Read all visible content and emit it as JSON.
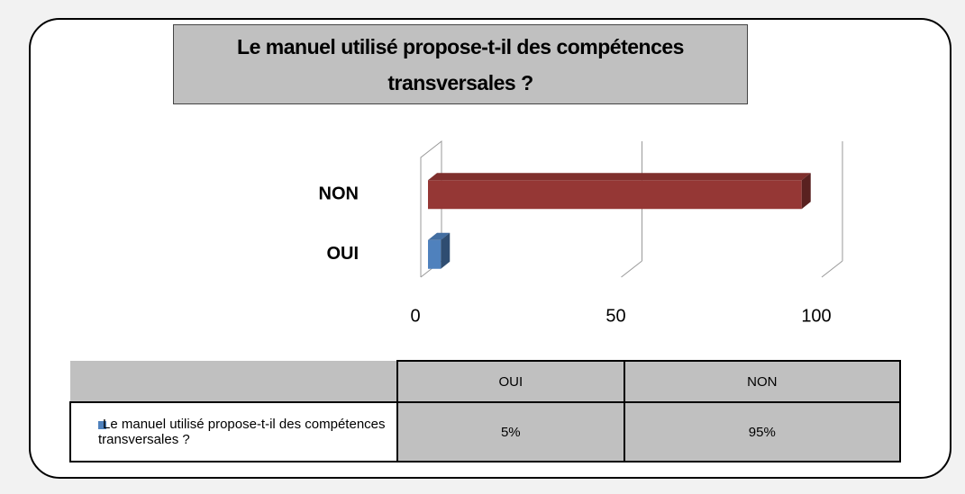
{
  "chart_data": {
    "type": "bar",
    "orientation": "horizontal",
    "title": "Le manuel utilisé propose-t-il des compétences transversales ?",
    "categories": [
      "OUI",
      "NON"
    ],
    "series": [
      {
        "name": "Le manuel utilisé propose-t-il des compétences transversales ?",
        "colors": [
          "#4f81bd",
          "#953735"
        ],
        "values": [
          5,
          95
        ],
        "value_labels": [
          "5%",
          "95%"
        ]
      }
    ],
    "xlim": [
      0,
      100
    ],
    "xticks": [
      0,
      50,
      100
    ],
    "grid": true
  }
}
